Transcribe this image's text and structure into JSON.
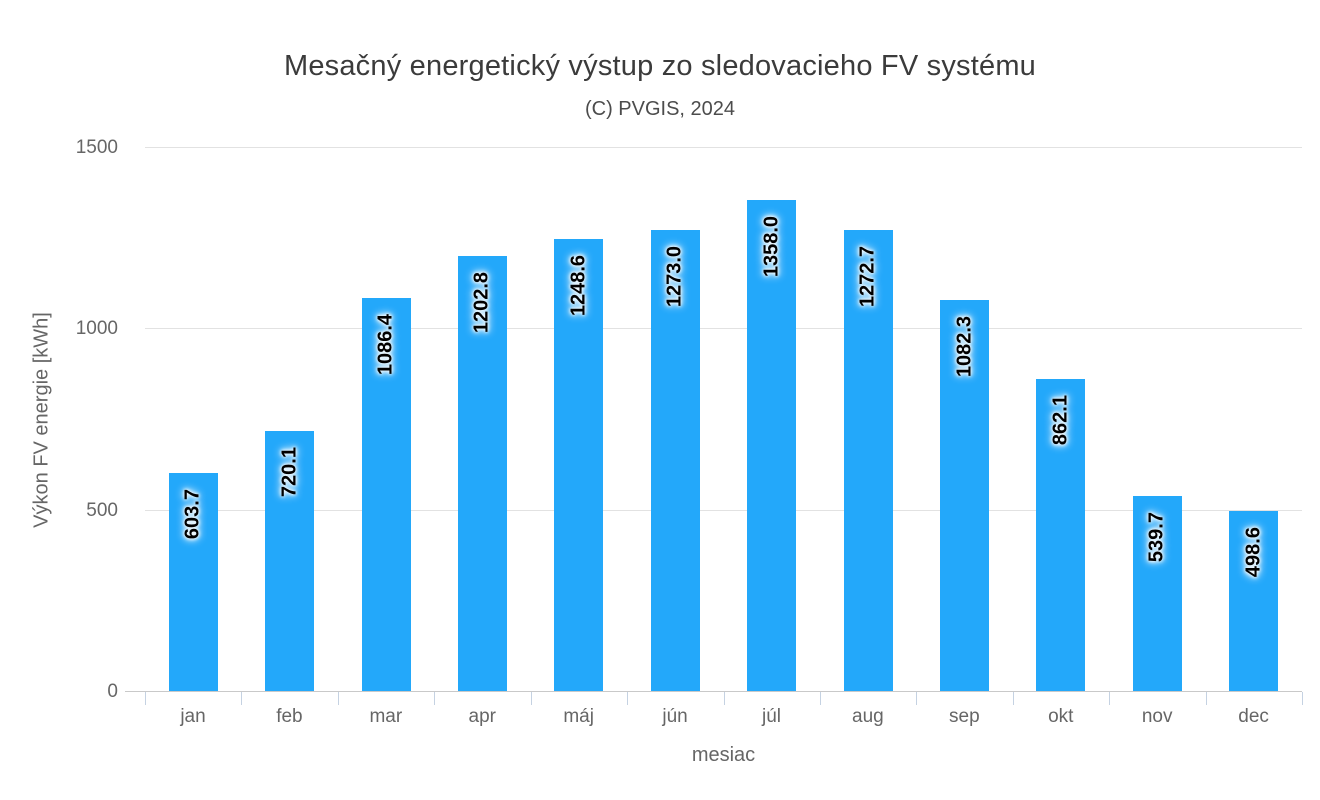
{
  "chart_data": {
    "type": "bar",
    "title": "Mesačný energetický výstup zo sledovacieho FV systému",
    "subtitle": "(C) PVGIS, 2024",
    "xlabel": "mesiac",
    "ylabel": "Výkon FV energie [kWh]",
    "categories": [
      "jan",
      "feb",
      "mar",
      "apr",
      "máj",
      "jún",
      "júl",
      "aug",
      "sep",
      "okt",
      "nov",
      "dec"
    ],
    "values": [
      603.7,
      720.1,
      1086.4,
      1202.8,
      1248.6,
      1273.0,
      1358.0,
      1272.7,
      1082.3,
      862.1,
      539.7,
      498.6
    ],
    "value_labels": [
      "603.7",
      "720.1",
      "1086.4",
      "1202.8",
      "1248.6",
      "1273.0",
      "1358.0",
      "1272.7",
      "1082.3",
      "862.1",
      "539.7",
      "498.6"
    ],
    "ylim": [
      0,
      1500
    ],
    "yticks": [
      0,
      500,
      1000,
      1500
    ],
    "grid": true,
    "legend": false,
    "colors": {
      "bar": "#23a8fa",
      "bar_label": "#000000",
      "bar_label_glow": "#ffffff",
      "gridline": "#e2e2e2",
      "axis_line": "#c9c9c9",
      "tick_mark": "#c5d2e2",
      "tick_text": "#666666",
      "title_text": "#3b3b3b",
      "subtitle_text": "#4c4c4c",
      "background": "#ffffff"
    }
  }
}
